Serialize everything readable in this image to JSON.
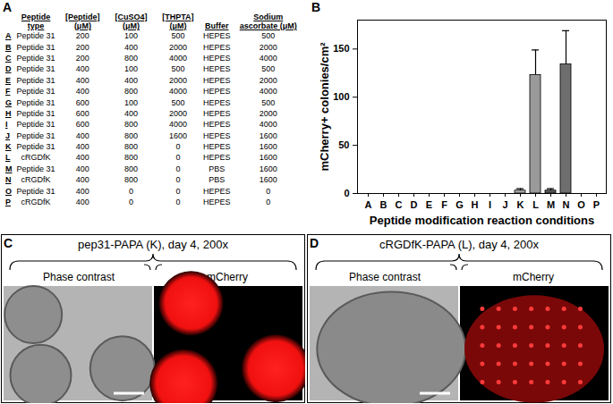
{
  "panel_letters": [
    "A",
    "B",
    "C",
    "D"
  ],
  "table": {
    "header": [
      "Peptide type",
      "[Peptide] (μM)",
      "[CuSO4] (μM)",
      "[THPTA] (μM)",
      "Buffer",
      "Sodium ascorbate (μM)"
    ],
    "rows": [
      [
        "A",
        "Peptide 31",
        200,
        100,
        500,
        "HEPES",
        500
      ],
      [
        "B",
        "Peptide 31",
        200,
        400,
        2000,
        "HEPES",
        2000
      ],
      [
        "C",
        "Peptide 31",
        200,
        800,
        4000,
        "HEPES",
        4000
      ],
      [
        "D",
        "Peptide 31",
        400,
        100,
        500,
        "HEPES",
        500
      ],
      [
        "E",
        "Peptide 31",
        400,
        400,
        2000,
        "HEPES",
        2000
      ],
      [
        "F",
        "Peptide 31",
        400,
        800,
        4000,
        "HEPES",
        4000
      ],
      [
        "G",
        "Peptide 31",
        600,
        100,
        500,
        "HEPES",
        500
      ],
      [
        "H",
        "Peptide 31",
        600,
        400,
        2000,
        "HEPES",
        2000
      ],
      [
        "I",
        "Peptide 31",
        600,
        800,
        4000,
        "HEPES",
        4000
      ],
      [
        "J",
        "Peptide 31",
        400,
        800,
        1600,
        "HEPES",
        1600
      ],
      [
        "K",
        "Peptide 31",
        400,
        800,
        0,
        "HEPES",
        1600
      ],
      [
        "L",
        "cRGDfK",
        400,
        800,
        0,
        "HEPES",
        1600
      ],
      [
        "M",
        "Peptide 31",
        400,
        800,
        0,
        "PBS",
        1600
      ],
      [
        "N",
        "cRGDfK",
        400,
        800,
        0,
        "PBS",
        1600
      ],
      [
        "O",
        "Peptide 31",
        400,
        0,
        0,
        "HEPES",
        0
      ],
      [
        "P",
        "cRGDfK",
        400,
        0,
        0,
        "HEPES",
        0
      ]
    ]
  },
  "chart_data": {
    "type": "bar",
    "x_label": "Peptide modification reaction conditions",
    "y_label": "mCherry+ colonies/cm²",
    "categories": [
      "A",
      "B",
      "C",
      "D",
      "E",
      "F",
      "G",
      "H",
      "I",
      "J",
      "K",
      "L",
      "M",
      "N",
      "O",
      "P"
    ],
    "values": [
      0,
      0,
      0,
      0,
      0,
      0,
      0,
      0,
      0,
      0,
      3,
      123,
      3,
      134,
      0,
      0
    ],
    "errors": [
      0,
      0,
      0,
      0,
      0,
      0,
      0,
      0,
      0,
      0,
      2,
      26,
      2,
      35,
      0,
      0
    ],
    "colors": [
      "#a0a0a0",
      "#a0a0a0",
      "#a0a0a0",
      "#a0a0a0",
      "#a0a0a0",
      "#a0a0a0",
      "#a0a0a0",
      "#a0a0a0",
      "#a0a0a0",
      "#a0a0a0",
      "#a8a8a8",
      "#9a9a9a",
      "#585858",
      "#6e6e6e",
      "#a0a0a0",
      "#a0a0a0"
    ],
    "ylim": [
      0,
      180
    ],
    "yticks": [
      0,
      50,
      100,
      150
    ],
    "grid": false
  },
  "images": [
    {
      "title": "pep31-PAPA (K), day 4, 200x",
      "left": "Phase contrast",
      "right": "mCherry"
    },
    {
      "title": "cRGDfK-PAPA (L), day 4, 200x",
      "left": "Phase contrast",
      "right": "mCherry"
    }
  ]
}
